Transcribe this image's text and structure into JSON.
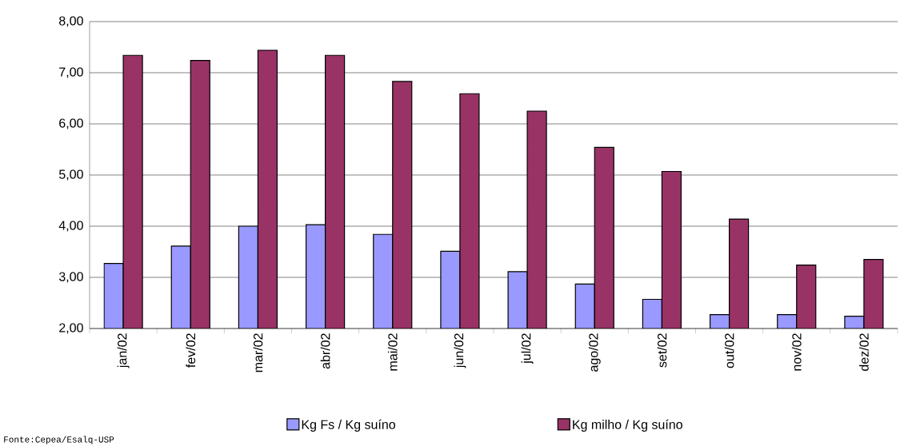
{
  "chart_data": {
    "type": "bar",
    "categories": [
      "jan/02",
      "fev/02",
      "mar/02",
      "abr/02",
      "mai/02",
      "jun/02",
      "jul/02",
      "ago/02",
      "set/02",
      "out/02",
      "nov/02",
      "dez/02"
    ],
    "series": [
      {
        "name": "Kg Fs / Kg suíno",
        "color": "#9999ff",
        "values": [
          3.27,
          3.61,
          4.0,
          4.03,
          3.84,
          3.51,
          3.11,
          2.87,
          2.57,
          2.27,
          2.27,
          2.24
        ]
      },
      {
        "name": "Kg milho / Kg suíno",
        "color": "#993366",
        "values": [
          7.34,
          7.24,
          7.44,
          7.34,
          6.83,
          6.59,
          6.25,
          5.54,
          5.07,
          4.14,
          3.24,
          3.35
        ]
      }
    ],
    "ylim": [
      2,
      8
    ],
    "yticks": [
      {
        "value": 2,
        "label": "2,00"
      },
      {
        "value": 3,
        "label": "3,00"
      },
      {
        "value": 4,
        "label": "4,00"
      },
      {
        "value": 5,
        "label": "5,00"
      },
      {
        "value": 6,
        "label": "6,00"
      },
      {
        "value": 7,
        "label": "7,00"
      },
      {
        "value": 8,
        "label": "8,00"
      }
    ],
    "grid": "y",
    "legend": "bottom",
    "annotations": [
      "Fonte:Cepea/Esalq-USP"
    ]
  }
}
